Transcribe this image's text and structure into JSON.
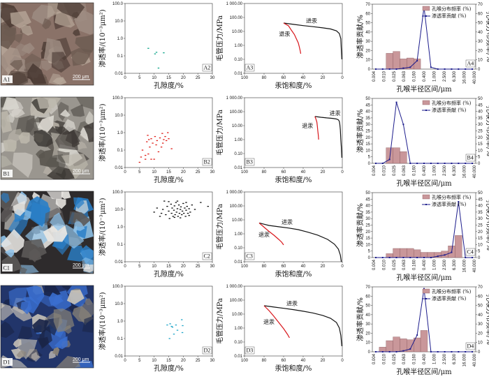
{
  "rows": [
    {
      "photo": {
        "label": "A1",
        "scale": "200 μm",
        "bg": "#8a7268",
        "tones": [
          "#4a3a33",
          "#b8a89a",
          "#6b5a50",
          "#9c8a80"
        ],
        "seed": 3
      },
      "scatter": {
        "tag": "A2",
        "points": [
          [
            8,
            0.27
          ],
          [
            10.3,
            0.13
          ],
          [
            10.8,
            0.16
          ],
          [
            13.3,
            0.15
          ],
          [
            11.5,
            0.02
          ]
        ],
        "color": "#0fa58a"
      },
      "capillary": {
        "tag": "A3",
        "in_label": "进汞",
        "out_label": "退汞",
        "intrusion": [
          [
            60,
            40
          ],
          [
            50,
            32
          ],
          [
            40,
            26
          ],
          [
            30,
            22
          ],
          [
            20,
            18
          ],
          [
            12,
            15
          ],
          [
            6,
            11
          ],
          [
            3,
            7
          ],
          [
            1.5,
            3
          ],
          [
            1,
            0.5
          ],
          [
            0.5,
            0.1
          ]
        ],
        "withdrawal": [
          [
            60,
            40
          ],
          [
            55,
            25
          ],
          [
            52,
            12
          ],
          [
            49,
            6
          ],
          [
            47,
            3
          ],
          [
            45,
            1.5
          ],
          [
            44,
            0.8
          ],
          [
            43,
            0.4
          ],
          [
            42.5,
            0.25
          ]
        ]
      },
      "dist": {
        "tag": "A4",
        "bars": [
          0,
          0,
          17,
          19,
          11,
          12,
          11,
          0,
          0,
          0,
          0,
          0,
          0,
          0,
          0
        ],
        "line": [
          0,
          0,
          0,
          0,
          1,
          2,
          9,
          67,
          2,
          0,
          0,
          0,
          0,
          0,
          0
        ],
        "ymax": 70,
        "yticks": [
          0,
          10,
          20,
          30,
          40,
          50,
          60,
          70
        ],
        "legend": true
      }
    },
    {
      "photo": {
        "label": "B1",
        "scale": "200 μm",
        "bg": "#9a968f",
        "tones": [
          "#d9d6cf",
          "#5a5650",
          "#bdb8ad",
          "#3e3a36"
        ],
        "seed": 7
      },
      "scatter": {
        "tag": "B2",
        "points": [
          [
            5,
            0.02
          ],
          [
            5.5,
            0.04
          ],
          [
            6,
            0.1
          ],
          [
            7,
            0.05
          ],
          [
            7.5,
            0.3
          ],
          [
            7.8,
            0.7
          ],
          [
            8,
            0.06
          ],
          [
            8.5,
            0.15
          ],
          [
            9,
            0.45
          ],
          [
            9.5,
            0.25
          ],
          [
            10,
            0.03
          ],
          [
            10.3,
            0.6
          ],
          [
            10.7,
            0.2
          ],
          [
            11,
            0.35
          ],
          [
            11.5,
            0.08
          ],
          [
            12,
            0.5
          ],
          [
            12.5,
            0.15
          ],
          [
            13,
            0.25
          ],
          [
            13.3,
            0.4
          ],
          [
            13.8,
            0.6
          ],
          [
            14.2,
            0.35
          ],
          [
            14.7,
            1.0
          ],
          [
            15,
            0.45
          ],
          [
            16,
            0.12
          ],
          [
            7,
            0.03
          ],
          [
            9,
            0.03
          ],
          [
            8.2,
            0.4
          ],
          [
            12.8,
            0.9
          ]
        ],
        "color": "#e0201a"
      },
      "capillary": {
        "tag": "B3",
        "in_label": "进汞",
        "out_label": "退汞",
        "intrusion": [
          [
            28,
            45
          ],
          [
            22,
            40
          ],
          [
            16,
            36
          ],
          [
            10,
            33
          ],
          [
            6,
            30
          ],
          [
            4,
            26
          ],
          [
            3,
            20
          ],
          [
            2.5,
            12
          ],
          [
            2,
            5
          ],
          [
            1.5,
            1
          ],
          [
            1,
            0.3
          ],
          [
            0.5,
            0.05
          ]
        ],
        "withdrawal": [
          [
            28,
            45
          ],
          [
            27,
            30
          ],
          [
            26,
            18
          ],
          [
            25.5,
            9
          ],
          [
            25,
            4
          ],
          [
            24.5,
            2
          ],
          [
            24.2,
            1
          ]
        ]
      },
      "dist": {
        "tag": "B4",
        "bars": [
          0,
          0,
          12,
          12,
          9,
          0,
          0,
          0,
          0,
          0,
          0,
          0,
          0,
          0,
          0
        ],
        "line": [
          0,
          0,
          3,
          47,
          30,
          0,
          0,
          0,
          0,
          0,
          0,
          0,
          0,
          0,
          0
        ],
        "ymax": 50,
        "yticks": [
          0,
          5,
          10,
          15,
          20,
          25,
          30,
          35,
          40,
          45,
          50
        ],
        "legend": true
      }
    },
    {
      "photo": {
        "label": "C1",
        "scale": "200 μm",
        "bg": "#2e2b2c",
        "tones": [
          "#2a7fc8",
          "#e8e6e2",
          "#5c5958",
          "#8fc3ea"
        ],
        "seed": 11
      },
      "scatter": {
        "tag": "C2",
        "points": [
          [
            10,
            7
          ],
          [
            11,
            12
          ],
          [
            12,
            4
          ],
          [
            13,
            10
          ],
          [
            14,
            5
          ],
          [
            14.5,
            15
          ],
          [
            15,
            8
          ],
          [
            15.3,
            3
          ],
          [
            15.8,
            20
          ],
          [
            16,
            6
          ],
          [
            16.2,
            12
          ],
          [
            16.5,
            4
          ],
          [
            16.8,
            9
          ],
          [
            17,
            16
          ],
          [
            17.2,
            5
          ],
          [
            17.5,
            25
          ],
          [
            17.7,
            7
          ],
          [
            18,
            11
          ],
          [
            18.2,
            4
          ],
          [
            18.5,
            18
          ],
          [
            18.7,
            6
          ],
          [
            19,
            10
          ],
          [
            19.2,
            14
          ],
          [
            19.5,
            5
          ],
          [
            19.7,
            8
          ],
          [
            20,
            22
          ],
          [
            20.2,
            6
          ],
          [
            20.5,
            12
          ],
          [
            20.8,
            4
          ],
          [
            21,
            9
          ],
          [
            21.3,
            15
          ],
          [
            21.6,
            6
          ],
          [
            22,
            11
          ],
          [
            22.4,
            7
          ],
          [
            23,
            18
          ],
          [
            24,
            10
          ],
          [
            26,
            25
          ],
          [
            28.5,
            15
          ],
          [
            13.5,
            30
          ],
          [
            15,
            28
          ],
          [
            18,
            30
          ],
          [
            21,
            25
          ],
          [
            17,
            3.5
          ],
          [
            19,
            3.3
          ],
          [
            22,
            4.5
          ],
          [
            12.5,
            6
          ]
        ],
        "color": "#111111"
      },
      "capillary": {
        "tag": "C3",
        "in_label": "进汞",
        "out_label": "退汞",
        "intrusion": [
          [
            85,
            6
          ],
          [
            75,
            4
          ],
          [
            65,
            3.2
          ],
          [
            55,
            2.6
          ],
          [
            45,
            2
          ],
          [
            35,
            1.3
          ],
          [
            25,
            0.8
          ],
          [
            15,
            0.4
          ],
          [
            8,
            0.18
          ],
          [
            4,
            0.08
          ],
          [
            2,
            0.03
          ],
          [
            1,
            0.01
          ]
        ],
        "withdrawal": [
          [
            85,
            6
          ],
          [
            80,
            3
          ],
          [
            75,
            1.5
          ],
          [
            70,
            0.8
          ],
          [
            65,
            0.4
          ],
          [
            62,
            0.25
          ],
          [
            60,
            0.16
          ]
        ]
      },
      "dist": {
        "tag": "C4",
        "bars": [
          0,
          0,
          3,
          7,
          7,
          7,
          6,
          4,
          4,
          4,
          5,
          9,
          17,
          0,
          0
        ],
        "line": [
          0,
          0,
          0,
          0,
          0,
          0,
          0,
          0,
          0,
          1,
          2,
          4,
          43,
          0,
          0
        ],
        "ymax": 50,
        "yticks": [
          0,
          5,
          10,
          15,
          20,
          25,
          30,
          35,
          40,
          45,
          50
        ],
        "legend": true
      }
    },
    {
      "photo": {
        "label": "D1",
        "scale": "200 μm",
        "bg": "#22356a",
        "tones": [
          "#3a6fd0",
          "#c9c3b8",
          "#1a2548",
          "#8b8478"
        ],
        "seed": 19
      },
      "scatter": {
        "tag": "D2",
        "points": [
          [
            14.5,
            0.6
          ],
          [
            15.5,
            0.7
          ],
          [
            16,
            0.5
          ],
          [
            16.3,
            0.45
          ],
          [
            17.5,
            0.6
          ],
          [
            16.8,
            0.18
          ],
          [
            19.5,
            1.2
          ],
          [
            19.8,
            0.55
          ],
          [
            15.3,
            0.1
          ],
          [
            18,
            0.3
          ],
          [
            19.7,
            0.22
          ]
        ],
        "color": "#1fa6c9"
      },
      "capillary": {
        "tag": "D3",
        "in_label": "进汞",
        "out_label": "退汞",
        "intrusion": [
          [
            80,
            40
          ],
          [
            70,
            32
          ],
          [
            60,
            26
          ],
          [
            50,
            21
          ],
          [
            40,
            16
          ],
          [
            30,
            12
          ],
          [
            20,
            8
          ],
          [
            12,
            5
          ],
          [
            6,
            2.5
          ],
          [
            3,
            1
          ],
          [
            1.5,
            0.3
          ],
          [
            0.5,
            0.05
          ]
        ],
        "withdrawal": [
          [
            80,
            40
          ],
          [
            75,
            18
          ],
          [
            70,
            7
          ],
          [
            65,
            2.5
          ],
          [
            60,
            0.9
          ],
          [
            56,
            0.35
          ],
          [
            54,
            0.2
          ]
        ]
      },
      "dist": {
        "tag": "D4",
        "bars": [
          0,
          5,
          12,
          16,
          14,
          13,
          15,
          23,
          0,
          0,
          0,
          0,
          0,
          0,
          0
        ],
        "line": [
          0,
          0,
          0,
          0,
          1,
          3,
          18,
          68,
          0,
          0,
          0,
          0,
          0,
          0,
          0
        ],
        "ymax": 70,
        "yticks": [
          0,
          10,
          20,
          30,
          40,
          50,
          60,
          70
        ],
        "legend": true
      }
    }
  ],
  "labels": {
    "scatter_x": "孔隙度/%",
    "scatter_y": "渗透率/(10⁻³μm²)",
    "scatter_yticks": [
      "0.01",
      "0.1",
      "1.0",
      "10.0",
      "100.0"
    ],
    "scatter_xticks": [
      "0",
      "5",
      "10",
      "15",
      "20",
      "25",
      "30"
    ],
    "cap_x": "汞饱和度/%",
    "cap_y": "毛管压力/MPa",
    "cap_yticks": [
      "0.01",
      "0.10",
      "1.00",
      "10.00",
      "100.00",
      "1 000.00"
    ],
    "cap_xticks": [
      "100",
      "80",
      "60",
      "40",
      "20",
      "0"
    ],
    "dist_x": "孔喉半径区间/μm",
    "dist_yl": "渗透率贡献/%",
    "dist_yr": "孔喉分布频率/%",
    "dist_xticks": [
      "0.004",
      "0.010",
      "0.025",
      "0.063",
      "0.160",
      "0.400",
      "1.000",
      "2.500",
      "6.300",
      "16.000",
      "40.000"
    ],
    "legend_bar": "孔喉分布频率 (%)",
    "legend_line": "渗透率贡献 (%)"
  },
  "chart_data": [
    {
      "type": "scatter",
      "title": "A2",
      "xlabel": "孔隙度/%",
      "ylabel": "渗透率/(10⁻³μm²)",
      "xlim": [
        0,
        30
      ],
      "ylim": [
        0.01,
        100
      ],
      "log_y": true,
      "series": [
        {
          "x": [
            8,
            10.3,
            10.8,
            13.3,
            11.5
          ],
          "y": [
            0.27,
            0.13,
            0.16,
            0.15,
            0.02
          ]
        }
      ]
    },
    {
      "type": "scatter",
      "title": "B2",
      "xlabel": "孔隙度/%",
      "ylabel": "渗透率/(10⁻³μm²)",
      "xlim": [
        0,
        30
      ],
      "ylim": [
        0.01,
        100
      ],
      "log_y": true
    },
    {
      "type": "scatter",
      "title": "C2",
      "xlabel": "孔隙度/%",
      "ylabel": "渗透率/(10⁻³μm²)",
      "xlim": [
        0,
        30
      ],
      "ylim": [
        0.01,
        100
      ],
      "log_y": true
    },
    {
      "type": "scatter",
      "title": "D2",
      "xlabel": "孔隙度/%",
      "ylabel": "渗透率/(10⁻³μm²)",
      "xlim": [
        0,
        30
      ],
      "ylim": [
        0.01,
        100
      ],
      "log_y": true
    },
    {
      "type": "line",
      "title": "A3-D3",
      "xlabel": "汞饱和度/%",
      "ylabel": "毛管压力/MPa",
      "xlim": [
        100,
        0
      ],
      "ylim": [
        0.01,
        1000
      ],
      "log_y": true
    },
    {
      "type": "bar",
      "title": "A4-D4",
      "xlabel": "孔喉半径区间/μm",
      "ylabel": "渗透率贡献/%",
      "y2label": "孔喉分布频率/%",
      "categories": [
        "0.004",
        "0.010",
        "0.025",
        "0.063",
        "0.160",
        "0.400",
        "1.000",
        "2.500",
        "6.300",
        "16.000",
        "40.000"
      ]
    }
  ]
}
